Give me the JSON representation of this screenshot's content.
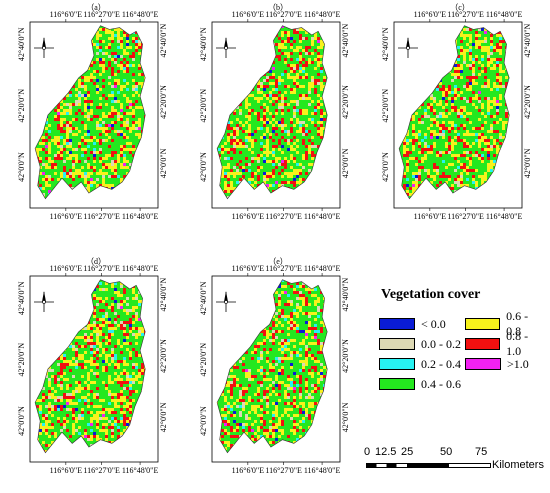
{
  "figure": {
    "panels": [
      {
        "label": "（a）",
        "seed": 11
      },
      {
        "label": "（b）",
        "seed": 23
      },
      {
        "label": "（c）",
        "seed": 37
      },
      {
        "label": "（d）",
        "seed": 51
      },
      {
        "label": "（e）",
        "seed": 67
      }
    ],
    "lon_ticks": [
      "116°6'0\"E",
      "116°27'0\"E",
      "116°48'0\"E"
    ],
    "lat_ticks_left": [
      "42°40'0\"N",
      "42°20'0\"N",
      "42°0'0\"N"
    ],
    "lat_ticks_right": [
      "42°40'0\"N",
      "42°20'0\"N",
      "42°0'0\"N"
    ],
    "north_arrow": "north-arrow-icon"
  },
  "legend": {
    "title": "Vegetation cover",
    "items": [
      {
        "label": "< 0.0",
        "color": "#0a1cd6"
      },
      {
        "label": "0.0 - 0.2",
        "color": "#ddd9b4"
      },
      {
        "label": "0.2 - 0.4",
        "color": "#27f2f2"
      },
      {
        "label": "0.4 - 0.6",
        "color": "#24e81f"
      },
      {
        "label": "0.6 - 0.8",
        "color": "#f7f21c"
      },
      {
        "label": "0.8 - 1.0",
        "color": "#f21010"
      },
      {
        "label": ">1.0",
        "color": "#f221f2"
      }
    ]
  },
  "scalebar": {
    "ticks": [
      "0",
      "12.5",
      "25",
      "50",
      "75"
    ],
    "unit": "Kilometers"
  }
}
